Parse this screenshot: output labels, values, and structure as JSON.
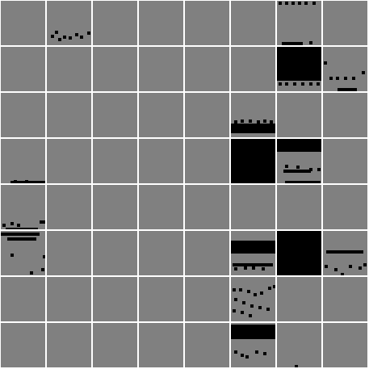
{
  "grid": {
    "rows": 8,
    "cols": 8
  },
  "colors": {
    "background": "#808080",
    "separator": "#ffffff",
    "ink": "#000000"
  },
  "tiles": [
    {
      "r": 0,
      "c": 1,
      "type": "pattern",
      "pattern": "scatter-mid"
    },
    {
      "r": 0,
      "c": 6,
      "type": "pattern",
      "pattern": "top-dots-bottom-bar"
    },
    {
      "r": 1,
      "c": 6,
      "type": "filled-rows",
      "pattern": "mostly-filled"
    },
    {
      "r": 1,
      "c": 7,
      "type": "pattern",
      "pattern": "side-dots"
    },
    {
      "r": 2,
      "c": 5,
      "type": "pattern",
      "pattern": "bottom-band"
    },
    {
      "r": 3,
      "c": 0,
      "type": "pattern",
      "pattern": "bottom-line"
    },
    {
      "r": 3,
      "c": 5,
      "type": "filled",
      "pattern": "full"
    },
    {
      "r": 3,
      "c": 6,
      "type": "pattern",
      "pattern": "top-block-dots"
    },
    {
      "r": 4,
      "c": 0,
      "type": "pattern",
      "pattern": "bottom-dots"
    },
    {
      "r": 5,
      "c": 0,
      "type": "pattern",
      "pattern": "top-bar-dots"
    },
    {
      "r": 5,
      "c": 5,
      "type": "pattern",
      "pattern": "top-block-bar"
    },
    {
      "r": 5,
      "c": 6,
      "type": "filled",
      "pattern": "full"
    },
    {
      "r": 5,
      "c": 7,
      "type": "pattern",
      "pattern": "mid-bar-dots"
    },
    {
      "r": 6,
      "c": 5,
      "type": "pattern",
      "pattern": "scatter-dense"
    },
    {
      "r": 7,
      "c": 5,
      "type": "pattern",
      "pattern": "top-band-dots"
    },
    {
      "r": 7,
      "c": 6,
      "type": "pattern",
      "pattern": "single-bottom-dot"
    }
  ]
}
